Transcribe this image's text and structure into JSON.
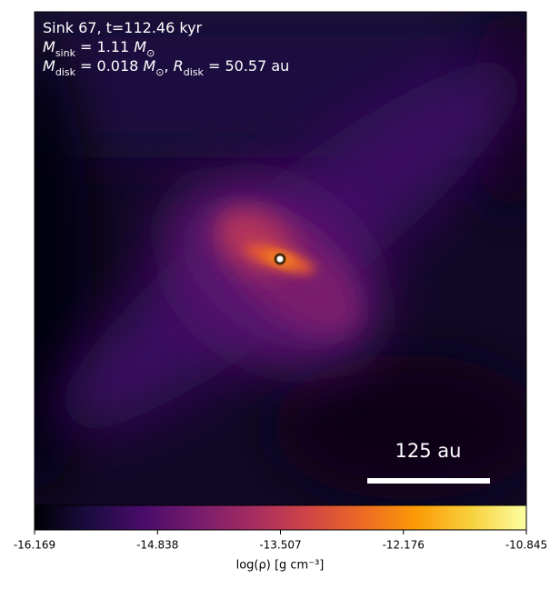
{
  "chart_data": {
    "type": "density_map",
    "annotation_lines": [
      [
        {
          "text": "Sink 67, t=112.46 kyr"
        }
      ],
      [
        {
          "text": "M",
          "italic": true
        },
        {
          "text": "sink",
          "sub": true
        },
        {
          "text": " = 1.11 "
        },
        {
          "text": "M",
          "italic": true
        },
        {
          "text": "⊙",
          "sub": true
        }
      ],
      [
        {
          "text": "M",
          "italic": true
        },
        {
          "text": "disk",
          "sub": true
        },
        {
          "text": " = 0.018 "
        },
        {
          "text": "M",
          "italic": true
        },
        {
          "text": "⊙",
          "sub": true
        },
        {
          "text": ", "
        },
        {
          "text": "R",
          "italic": true
        },
        {
          "text": "disk",
          "sub": true
        },
        {
          "text": " = 50.57 au"
        }
      ]
    ],
    "scalebar_label": "125 au",
    "colorbar": {
      "label": "log(ρ) [g cm⁻³]",
      "lim": [
        -16.169,
        -10.845
      ],
      "ticks": [
        -16.169,
        -14.838,
        -13.507,
        -12.176,
        -10.845
      ],
      "colormap": [
        "#000004",
        "#1b0c41",
        "#4a0c6b",
        "#781c6d",
        "#a52c60",
        "#cf4446",
        "#ed6925",
        "#fb9b06",
        "#f7d13d",
        "#fcffa4"
      ]
    }
  }
}
